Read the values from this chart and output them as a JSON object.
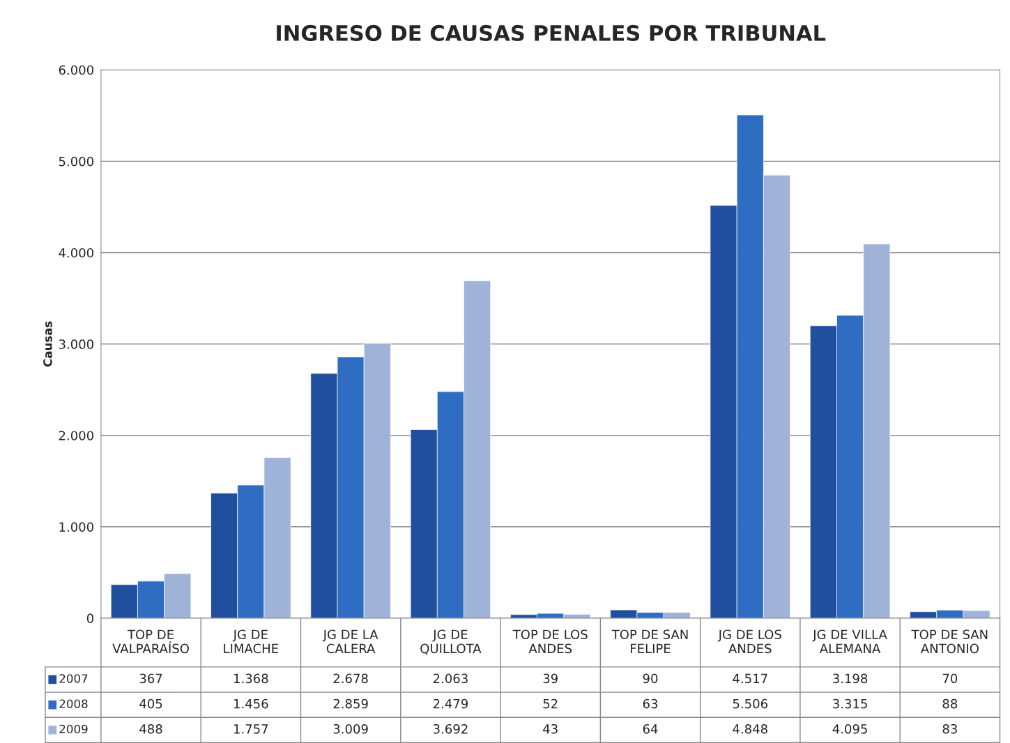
{
  "chart_data": {
    "type": "bar",
    "title": "INGRESO DE CAUSAS PENALES POR TRIBUNAL",
    "ylabel": "Causas",
    "categories": [
      "TOP DE\nVALPARAÍSO",
      "JG DE\nLIMACHE",
      "JG DE LA\nCALERA",
      "JG DE\nQUILLOTA",
      "TOP DE LOS\nANDES",
      "TOP DE SAN\nFELIPE",
      "JG DE LOS\nANDES",
      "JG DE VILLA\nALEMANA",
      "TOP DE SAN\nANTONIO"
    ],
    "series": [
      {
        "name": "2007",
        "color": "#1f4f9e",
        "values": [
          367,
          1368,
          2678,
          2063,
          39,
          90,
          4517,
          3198,
          70
        ],
        "value_labels": [
          "367",
          "1.368",
          "2.678",
          "2.063",
          "39",
          "90",
          "4.517",
          "3.198",
          "70"
        ]
      },
      {
        "name": "2008",
        "color": "#2f6dc2",
        "values": [
          405,
          1456,
          2859,
          2479,
          52,
          63,
          5506,
          3315,
          88
        ],
        "value_labels": [
          "405",
          "1.456",
          "2.859",
          "2.479",
          "52",
          "63",
          "5.506",
          "3.315",
          "88"
        ]
      },
      {
        "name": "2009",
        "color": "#9fb3d9",
        "values": [
          488,
          1757,
          3009,
          3692,
          43,
          64,
          4848,
          4095,
          83
        ],
        "value_labels": [
          "488",
          "1.757",
          "3.009",
          "3.692",
          "43",
          "64",
          "4.848",
          "4.095",
          "83"
        ]
      }
    ],
    "ylim": [
      0,
      6000
    ],
    "yticks": [
      0,
      {
        "value": 1000,
        "label": "1.000"
      },
      {
        "value": 2000,
        "label": "2.000"
      },
      {
        "value": 3000,
        "label": "3.000"
      },
      {
        "value": 4000,
        "label": "4.000"
      },
      {
        "value": 5000,
        "label": "5.000"
      },
      {
        "value": 6000,
        "label": "6.000"
      }
    ],
    "grid": "y",
    "legend": "bottom left"
  }
}
